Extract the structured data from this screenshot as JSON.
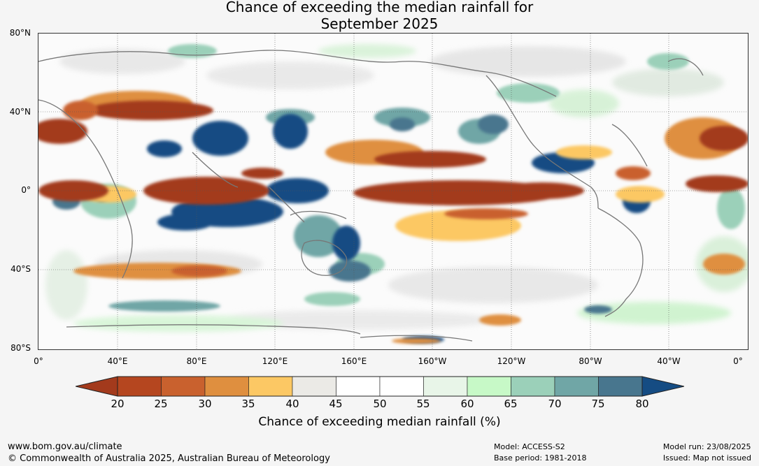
{
  "title": {
    "line1": "Chance of exceeding the median rainfall for",
    "line2": "September 2025"
  },
  "axes": {
    "lat_labels": [
      "80°N",
      "40°N",
      "0°",
      "40°S",
      "80°S"
    ],
    "lon_labels": [
      "0°",
      "40°E",
      "80°E",
      "120°E",
      "160°E",
      "160°W",
      "120°W",
      "80°W",
      "40°W",
      "0°"
    ]
  },
  "colorbar": {
    "ticks": [
      "20",
      "25",
      "30",
      "35",
      "40",
      "45",
      "50",
      "55",
      "60",
      "65",
      "70",
      "75",
      "80"
    ],
    "colors": [
      "#a33a1c",
      "#b5461f",
      "#c9612e",
      "#df8f3f",
      "#fcc864",
      "#ebeae6",
      "#ffffff",
      "#ffffff",
      "#e8f5e8",
      "#c7f9c7",
      "#9bd0b9",
      "#70a6a6",
      "#48768e",
      "#154c83"
    ],
    "label": "Chance of exceeding median rainfall (%)"
  },
  "footer": {
    "website": "www.bom.gov.au/climate",
    "copyright": "© Commonwealth of Australia 2025, Australian Bureau of Meteorology",
    "model": "Model: ACCESS-S2",
    "base_period": "Base period: 1981-2018",
    "model_run": "Model run: 23/08/2025",
    "issued": "Issued: Map not issued"
  }
}
